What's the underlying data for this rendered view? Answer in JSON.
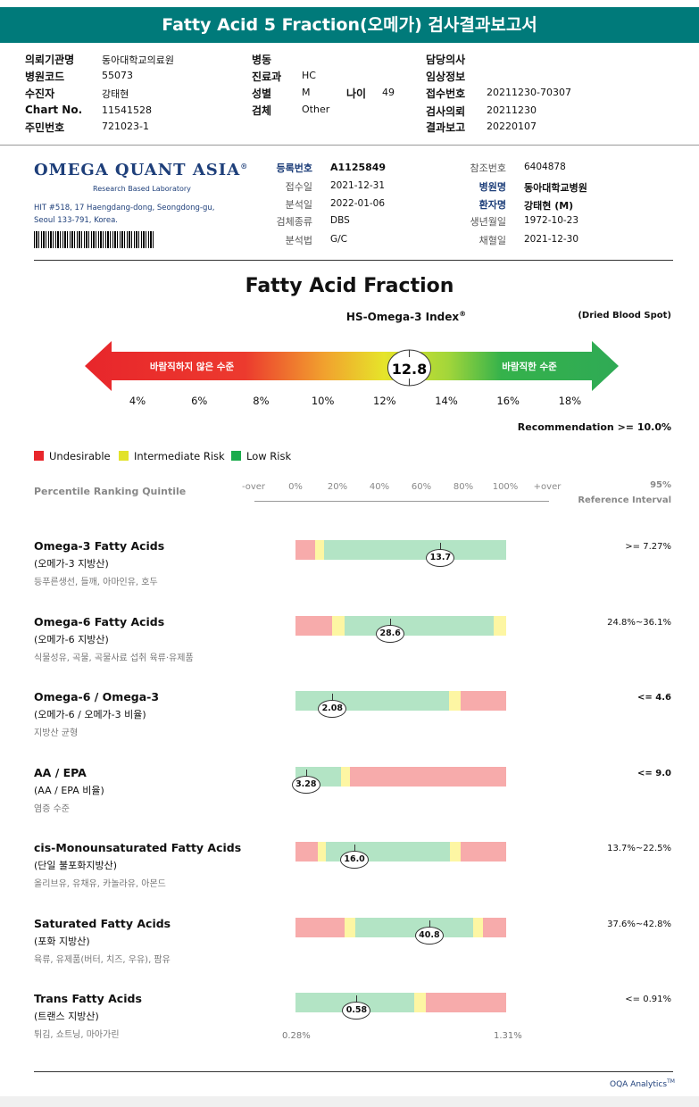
{
  "title": "Fatty Acid 5 Fraction(오메가) 검사결과보고서",
  "header": {
    "col1": [
      {
        "k": "의뢰기관명",
        "v": "동아대학교의료원"
      },
      {
        "k": "병원코드",
        "v": "55073"
      },
      {
        "k": "수진자",
        "v": "강태현"
      },
      {
        "k": "Chart No.",
        "v": "11541528"
      },
      {
        "k": "주민번호",
        "v": "721023-1"
      }
    ],
    "col2": [
      {
        "k": "병동",
        "v": ""
      },
      {
        "k": "진료과",
        "v": "HC"
      },
      {
        "k": "성별",
        "v": "M"
      },
      {
        "k": "검체",
        "v": "Other"
      }
    ],
    "age_k": "나이",
    "age_v": "49",
    "col3": [
      {
        "k": "담당의사",
        "v": ""
      },
      {
        "k": "임상정보",
        "v": ""
      },
      {
        "k": "접수번호",
        "v": "20211230-70307"
      },
      {
        "k": "검사의뢰",
        "v": "20211230"
      },
      {
        "k": "결과보고",
        "v": "20220107"
      }
    ]
  },
  "lab": {
    "logo": "OMEGA QUANT ASIA",
    "logo_reg": "®",
    "sub": "Research Based Laboratory",
    "addr1": "HIT #518, 17 Haengdang-dong, Seongdong-gu,",
    "addr2": "Seoul 133-791, Korea."
  },
  "meta_left": [
    {
      "k": "등록번호",
      "v": "A1125849",
      "bold": true
    },
    {
      "k": "접수일",
      "v": "2021-12-31"
    },
    {
      "k": "분석일",
      "v": "2022-01-06"
    },
    {
      "k": "검체종류",
      "v": "DBS"
    },
    {
      "k": "분석법",
      "v": "G/C"
    }
  ],
  "meta_right": [
    {
      "k": "참조번호",
      "v": "6404878"
    },
    {
      "k": "병원명",
      "v": "동아대학교병원",
      "bold": true
    },
    {
      "k": "환자명",
      "v": "강태현 (M)",
      "bold": true
    },
    {
      "k": "생년월일",
      "v": "1972-10-23"
    },
    {
      "k": "채혈일",
      "v": "2021-12-30"
    }
  ],
  "main_title": "Fatty Acid Fraction",
  "index_title": "HS-Omega-3 Index",
  "index_reg": "®",
  "dbs_label": "(Dried Blood Spot)",
  "arrow": {
    "left_label": "바람직하지 않은 수준",
    "right_label": "바람직한 수준",
    "value": "12.8",
    "value_num": 12.8
  },
  "scale": [
    "4%",
    "6%",
    "8%",
    "10%",
    "12%",
    "14%",
    "16%",
    "18%"
  ],
  "recommendation": "Recommendation  >= 10.0%",
  "legend": [
    {
      "label": "Undesirable",
      "color": "#e8262b"
    },
    {
      "label": "Intermediate Risk",
      "color": "#e2e22a"
    },
    {
      "label": "Low Risk",
      "color": "#1aab4b"
    }
  ],
  "quintile": {
    "label": "Percentile Ranking Quintile",
    "ticks": [
      "-over",
      "0%",
      "20%",
      "40%",
      "60%",
      "80%",
      "100%",
      "+over"
    ],
    "ref_line1": "95%",
    "ref_line2": "Reference Interval"
  },
  "colors": {
    "red": "#f7abab",
    "yellow": "#fdf6a3",
    "green": "#b3e4c5"
  },
  "rows": [
    {
      "name": "Omega-3 Fatty Acids",
      "sub": "(오메가-3 지방산)",
      "food": "등푸른생선, 들깨, 아마인유, 호두",
      "value": "13.7",
      "value_pos": 0.688,
      "ref": ">= 7.27%",
      "ref_bold": false,
      "segs": [
        [
          "red",
          0,
          0.094
        ],
        [
          "yellow",
          0.094,
          0.135
        ],
        [
          "green",
          0.135,
          1
        ]
      ]
    },
    {
      "name": "Omega-6 Fatty Acids",
      "sub": "(오메가-6 지방산)",
      "food": "식물성유, 곡물, 곡물사료 섭취 육류·유제품",
      "value": "28.6",
      "value_pos": 0.45,
      "ref": "24.8%~36.1%",
      "ref_bold": false,
      "segs": [
        [
          "red",
          0,
          0.175
        ],
        [
          "yellow",
          0.175,
          0.235
        ],
        [
          "green",
          0.235,
          0.94
        ],
        [
          "yellow",
          0.94,
          1
        ]
      ]
    },
    {
      "name": "Omega-6 / Omega-3",
      "sub": "(오메가-6 / 오메가-3 비율)",
      "food": "지방산 균형",
      "value": "2.08",
      "value_pos": 0.175,
      "ref": "<= 4.6",
      "ref_bold": true,
      "segs": [
        [
          "green",
          0,
          0.73
        ],
        [
          "yellow",
          0.73,
          0.785
        ],
        [
          "red",
          0.785,
          1
        ]
      ]
    },
    {
      "name": "AA / EPA",
      "sub": "(AA / EPA 비율)",
      "food": "염증 수준",
      "value": "3.28",
      "value_pos": 0.05,
      "ref": "<= 9.0",
      "ref_bold": true,
      "segs": [
        [
          "green",
          0,
          0.215
        ],
        [
          "yellow",
          0.215,
          0.26
        ],
        [
          "red",
          0.26,
          1
        ]
      ]
    },
    {
      "name": "cis-Monounsaturated Fatty Acids",
      "sub": "(단일 불포화지방산)",
      "food": "올리브유, 유채유, 카놀라유, 아몬드",
      "value": "16.0",
      "value_pos": 0.28,
      "ref": "13.7%~22.5%",
      "ref_bold": false,
      "segs": [
        [
          "red",
          0,
          0.105
        ],
        [
          "yellow",
          0.105,
          0.145
        ],
        [
          "green",
          0.145,
          0.735
        ],
        [
          "yellow",
          0.735,
          0.785
        ],
        [
          "red",
          0.785,
          1
        ]
      ]
    },
    {
      "name": "Saturated Fatty Acids",
      "sub": "(포화 지방산)",
      "food": "육류, 유제품(버터, 치즈, 우유), 팜유",
      "value": "40.8",
      "value_pos": 0.635,
      "ref": "37.6%~42.8%",
      "ref_bold": false,
      "segs": [
        [
          "red",
          0,
          0.235
        ],
        [
          "yellow",
          0.235,
          0.285
        ],
        [
          "green",
          0.285,
          0.845
        ],
        [
          "yellow",
          0.845,
          0.89
        ],
        [
          "red",
          0.89,
          1
        ]
      ]
    },
    {
      "name": "Trans Fatty Acids",
      "sub": "(트랜스 지방산)",
      "food": "튀김, 쇼트닝, 마아가린",
      "value": "0.58",
      "value_pos": 0.29,
      "ref": "<= 0.91%",
      "ref_bold": false,
      "segs": [
        [
          "green",
          0,
          0.565
        ],
        [
          "yellow",
          0.565,
          0.62
        ],
        [
          "red",
          0.62,
          1
        ]
      ]
    }
  ],
  "trans_min": "0.28%",
  "trans_max": "1.31%",
  "footer": "OQA Analytics",
  "footer_tm": "TM"
}
